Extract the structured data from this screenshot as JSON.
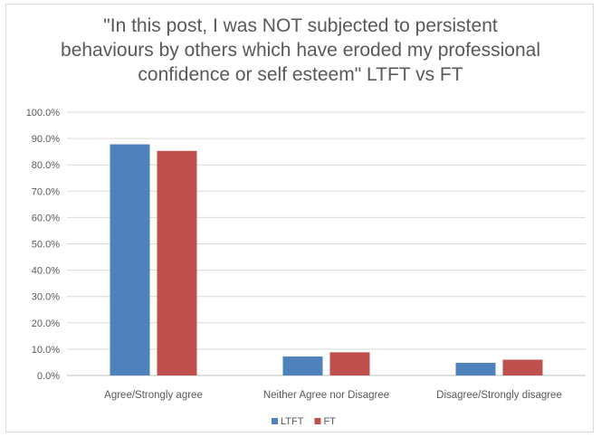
{
  "chart_data": {
    "type": "bar",
    "title_lines": [
      "\"In this post, I was NOT subjected to persistent",
      "behaviours by others which have eroded my professional",
      "confidence or self esteem\" LTFT vs FT"
    ],
    "categories": [
      "Agree/Strongly agree",
      "Neither Agree nor Disagree",
      "Disagree/Strongly disagree"
    ],
    "series": [
      {
        "name": "LTFT",
        "values": [
          87.8,
          7.2,
          4.8
        ],
        "color": "#4f81bd"
      },
      {
        "name": "FT",
        "values": [
          85.3,
          8.8,
          6.0
        ],
        "color": "#c0504d"
      }
    ],
    "ylim": [
      0,
      100
    ],
    "y_ticks": [
      "0.0%",
      "10.0%",
      "20.0%",
      "30.0%",
      "40.0%",
      "50.0%",
      "60.0%",
      "70.0%",
      "80.0%",
      "90.0%",
      "100.0%"
    ],
    "grid": true,
    "legend_position": "bottom"
  }
}
